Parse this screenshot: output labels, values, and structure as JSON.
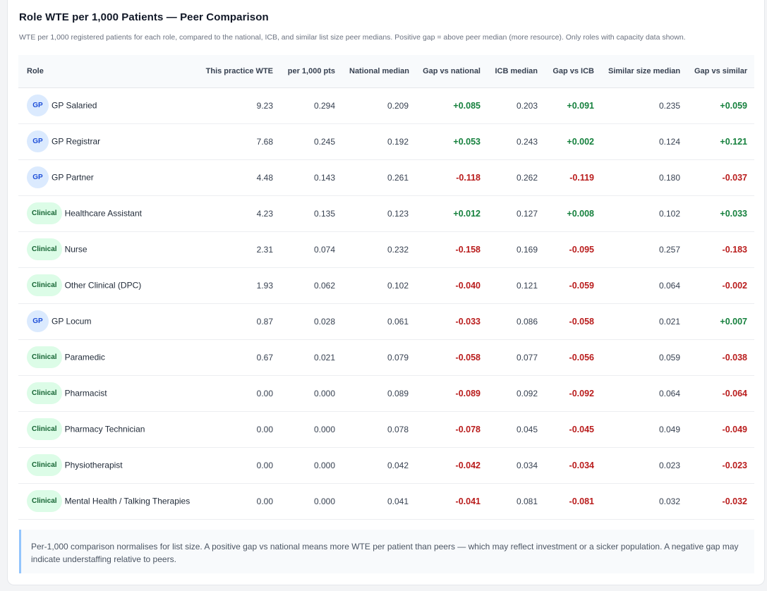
{
  "header": {
    "title": "Role WTE per 1,000 Patients — Peer Comparison",
    "subtitle": "WTE per 1,000 registered patients for each role, compared to the national, ICB, and similar list size peer medians. Positive gap = above peer median (more resource). Only roles with capacity data shown."
  },
  "table": {
    "columns": [
      "Role",
      "This practice WTE",
      "per 1,000 pts",
      "National median",
      "Gap vs national",
      "ICB median",
      "Gap vs ICB",
      "Similar size median",
      "Gap vs similar"
    ],
    "rows": [
      {
        "badge": "GP",
        "type": "gp",
        "role": "GP Salaried",
        "wte": "9.23",
        "per1000": "0.294",
        "national": "0.209",
        "gap_national": "+0.085",
        "icb": "0.203",
        "gap_icb": "+0.091",
        "similar": "0.235",
        "gap_similar": "+0.059"
      },
      {
        "badge": "GP",
        "type": "gp",
        "role": "GP Registrar",
        "wte": "7.68",
        "per1000": "0.245",
        "national": "0.192",
        "gap_national": "+0.053",
        "icb": "0.243",
        "gap_icb": "+0.002",
        "similar": "0.124",
        "gap_similar": "+0.121"
      },
      {
        "badge": "GP",
        "type": "gp",
        "role": "GP Partner",
        "wte": "4.48",
        "per1000": "0.143",
        "national": "0.261",
        "gap_national": "-0.118",
        "icb": "0.262",
        "gap_icb": "-0.119",
        "similar": "0.180",
        "gap_similar": "-0.037"
      },
      {
        "badge": "Clinical",
        "type": "clinical",
        "role": "Healthcare Assistant",
        "wte": "4.23",
        "per1000": "0.135",
        "national": "0.123",
        "gap_national": "+0.012",
        "icb": "0.127",
        "gap_icb": "+0.008",
        "similar": "0.102",
        "gap_similar": "+0.033"
      },
      {
        "badge": "Clinical",
        "type": "clinical",
        "role": "Nurse",
        "wte": "2.31",
        "per1000": "0.074",
        "national": "0.232",
        "gap_national": "-0.158",
        "icb": "0.169",
        "gap_icb": "-0.095",
        "similar": "0.257",
        "gap_similar": "-0.183"
      },
      {
        "badge": "Clinical",
        "type": "clinical",
        "role": "Other Clinical (DPC)",
        "wte": "1.93",
        "per1000": "0.062",
        "national": "0.102",
        "gap_national": "-0.040",
        "icb": "0.121",
        "gap_icb": "-0.059",
        "similar": "0.064",
        "gap_similar": "-0.002"
      },
      {
        "badge": "GP",
        "type": "gp",
        "role": "GP Locum",
        "wte": "0.87",
        "per1000": "0.028",
        "national": "0.061",
        "gap_national": "-0.033",
        "icb": "0.086",
        "gap_icb": "-0.058",
        "similar": "0.021",
        "gap_similar": "+0.007"
      },
      {
        "badge": "Clinical",
        "type": "clinical",
        "role": "Paramedic",
        "wte": "0.67",
        "per1000": "0.021",
        "national": "0.079",
        "gap_national": "-0.058",
        "icb": "0.077",
        "gap_icb": "-0.056",
        "similar": "0.059",
        "gap_similar": "-0.038"
      },
      {
        "badge": "Clinical",
        "type": "clinical",
        "role": "Pharmacist",
        "wte": "0.00",
        "per1000": "0.000",
        "national": "0.089",
        "gap_national": "-0.089",
        "icb": "0.092",
        "gap_icb": "-0.092",
        "similar": "0.064",
        "gap_similar": "-0.064"
      },
      {
        "badge": "Clinical",
        "type": "clinical",
        "role": "Pharmacy Technician",
        "wte": "0.00",
        "per1000": "0.000",
        "national": "0.078",
        "gap_national": "-0.078",
        "icb": "0.045",
        "gap_icb": "-0.045",
        "similar": "0.049",
        "gap_similar": "-0.049"
      },
      {
        "badge": "Clinical",
        "type": "clinical",
        "role": "Physiotherapist",
        "wte": "0.00",
        "per1000": "0.000",
        "national": "0.042",
        "gap_national": "-0.042",
        "icb": "0.034",
        "gap_icb": "-0.034",
        "similar": "0.023",
        "gap_similar": "-0.023"
      },
      {
        "badge": "Clinical",
        "type": "clinical",
        "role": "Mental Health / Talking Therapies",
        "wte": "0.00",
        "per1000": "0.000",
        "national": "0.041",
        "gap_national": "-0.041",
        "icb": "0.081",
        "gap_icb": "-0.081",
        "similar": "0.032",
        "gap_similar": "-0.032"
      }
    ]
  },
  "note": {
    "text": "Per-1,000 comparison normalises for list size. A positive gap vs national means more WTE per patient than peers — which may reflect investment or a sicker population. A negative gap may indicate understaffing relative to peers."
  },
  "colors": {
    "positive": "#15803d",
    "negative": "#b91c1c",
    "gp_badge_bg": "#dbeafe",
    "clinical_badge_bg": "#dcfce7"
  }
}
